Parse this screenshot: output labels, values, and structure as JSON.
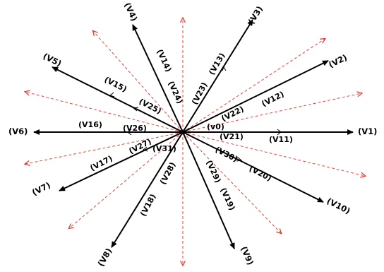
{
  "colors": {
    "vector": "#000000",
    "sector_line": "#e8322a",
    "background": "#ffffff"
  },
  "labels": {
    "v1": "(V1)",
    "v2": "(V2)",
    "v3": "(V3)",
    "v4": "(V4)",
    "v5": "(V5)",
    "v6": "(V6)",
    "v7": "(V7)",
    "v8": "(V8)",
    "v9": "(V9)",
    "v10": "(V10)",
    "v11": "(V11)",
    "v12": "(V12)",
    "v13": "(V13)",
    "v14": "(V14)",
    "v15": "(V15)",
    "v16": "(V16)",
    "v17": "(V17)",
    "v18": "(V18)",
    "v19": "(V19)",
    "v20": "(V20)",
    "v21": "(V21)",
    "v22": "(V22)",
    "v23": "(V23)",
    "v24": "(V24)",
    "v25": "(V25)",
    "v26": "(V26)",
    "v27": "(V27)",
    "v28": "(V28)",
    "v29": "(V29)",
    "v30": "(V30)",
    "v31": "(V31)",
    "v0": "(v0)"
  }
}
